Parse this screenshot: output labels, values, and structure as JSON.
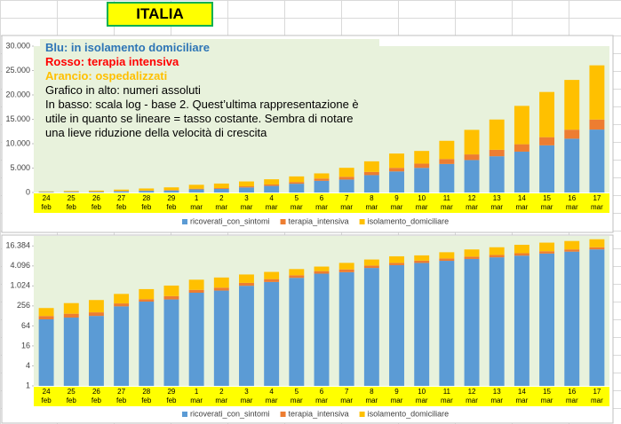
{
  "header": {
    "title": "ITALIA"
  },
  "chart_data": [
    {
      "type": "bar",
      "stacked": true,
      "yscale": "linear",
      "grid": false,
      "legend": "bottom",
      "annotations": [
        "Blu: in isolamento domiciliare",
        "Rosso: terapia intensiva",
        "Arancio: ospedalizzati",
        "Grafico in alto: numeri assoluti",
        "In basso: scala log - base 2. Quest’ultima rappresentazione è utile in quanto se lineare = tasso costante. Sembra di notare una lieve riduzione della velocità di crescita"
      ],
      "annotation_colors": [
        "#2e75b6",
        "#ff0000",
        "#ffc000",
        "#000000",
        "#000000"
      ],
      "categories": [
        "24\nfeb",
        "25\nfeb",
        "26\nfeb",
        "27\nfeb",
        "28\nfeb",
        "29\nfeb",
        "1\nmar",
        "2\nmar",
        "3\nmar",
        "4\nmar",
        "5\nmar",
        "6\nmar",
        "7\nmar",
        "8\nmar",
        "9\nmar",
        "10\nmar",
        "11\nmar",
        "12\nmar",
        "13\nmar",
        "14\nmar",
        "15\nmar",
        "16\nmar",
        "17\nmar"
      ],
      "series": [
        {
          "name": "ricoverati_con_sintomi",
          "color": "#5b9bd5",
          "values": [
            101,
            114,
            128,
            248,
            345,
            401,
            639,
            742,
            1034,
            1346,
            1790,
            2394,
            2651,
            3557,
            4316,
            5038,
            5838,
            6650,
            7426,
            8372,
            9663,
            11025,
            12894
          ]
        },
        {
          "name": "terapia_intensiva",
          "color": "#ed7d31",
          "values": [
            26,
            35,
            36,
            56,
            64,
            105,
            140,
            166,
            229,
            295,
            351,
            462,
            567,
            650,
            733,
            877,
            1028,
            1153,
            1328,
            1518,
            1672,
            1851,
            2060
          ]
        },
        {
          "name": "isolamento_domiciliare",
          "color": "#ffc000",
          "values": [
            94,
            162,
            221,
            284,
            412,
            543,
            798,
            927,
            1000,
            1065,
            1155,
            1060,
            1843,
            2180,
            2936,
            2599,
            3724,
            5036,
            6201,
            7860,
            9268,
            10197,
            11108
          ]
        }
      ],
      "ylim": [
        0,
        30000
      ],
      "yticks": [
        0,
        {
          "value": 5000,
          "label": "5.000"
        },
        {
          "value": 10000,
          "label": "10.000"
        },
        {
          "value": 15000,
          "label": "15.000"
        },
        {
          "value": 20000,
          "label": "20.000"
        },
        {
          "value": 25000,
          "label": "25.000"
        },
        {
          "value": 30000,
          "label": "30.000"
        }
      ]
    },
    {
      "type": "bar",
      "stacked": true,
      "yscale": "log",
      "grid": false,
      "legend": "bottom",
      "categories": [
        "24\nfeb",
        "25\nfeb",
        "26\nfeb",
        "27\nfeb",
        "28\nfeb",
        "29\nfeb",
        "1\nmar",
        "2\nmar",
        "3\nmar",
        "4\nmar",
        "5\nmar",
        "6\nmar",
        "7\nmar",
        "8\nmar",
        "9\nmar",
        "10\nmar",
        "11\nmar",
        "12\nmar",
        "13\nmar",
        "14\nmar",
        "15\nmar",
        "16\nmar",
        "17\nmar"
      ],
      "series": [
        {
          "name": "ricoverati_con_sintomi",
          "color": "#5b9bd5",
          "values": [
            101,
            114,
            128,
            248,
            345,
            401,
            639,
            742,
            1034,
            1346,
            1790,
            2394,
            2651,
            3557,
            4316,
            5038,
            5838,
            6650,
            7426,
            8372,
            9663,
            11025,
            12894
          ]
        },
        {
          "name": "terapia_intensiva",
          "color": "#ed7d31",
          "values": [
            26,
            35,
            36,
            56,
            64,
            105,
            140,
            166,
            229,
            295,
            351,
            462,
            567,
            650,
            733,
            877,
            1028,
            1153,
            1328,
            1518,
            1672,
            1851,
            2060
          ]
        },
        {
          "name": "isolamento_domiciliare",
          "color": "#ffc000",
          "values": [
            94,
            162,
            221,
            284,
            412,
            543,
            798,
            927,
            1000,
            1065,
            1155,
            1060,
            1843,
            2180,
            2936,
            2599,
            3724,
            5036,
            6201,
            7860,
            9268,
            10197,
            11108
          ]
        }
      ],
      "ylim": [
        1,
        32768
      ],
      "yticks": [
        1,
        4,
        16,
        64,
        256,
        {
          "value": 1024,
          "label": "1.024"
        },
        {
          "value": 4096,
          "label": "4.096"
        },
        {
          "value": 16384,
          "label": "16.384"
        }
      ]
    }
  ]
}
